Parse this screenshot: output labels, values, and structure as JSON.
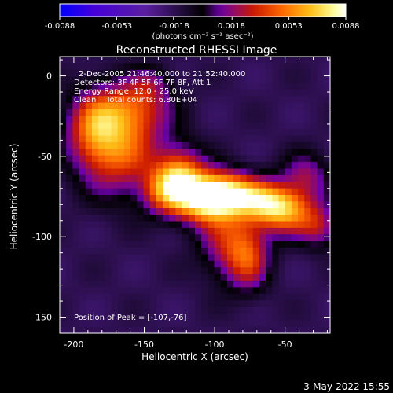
{
  "colorbar": {
    "tick_labels": [
      "-0.0088",
      "-0.0053",
      "-0.0018",
      "0.0018",
      "0.0053",
      "0.0088"
    ],
    "unit_label": "(photons cm⁻² s⁻¹ asec⁻²)"
  },
  "info": {
    "time_range": "2-Dec-2005 21:46:40.000 to 21:52:40.000",
    "detectors": "Detectors: 3F 4F 5F 6F 7F 8F, Att 1",
    "energy_range": "Energy Range: 12.0 - 25.0 keV",
    "method_counts": "Clean    Total counts: 6.80E+04",
    "peak_position": "Position of Peak = [-107,-76]"
  },
  "footer": {
    "date": "3-May-2022 15:55"
  },
  "chart_data": {
    "type": "heatmap",
    "title": "Reconstructed RHESSI Image",
    "xlabel": "Heliocentric X (arcsec)",
    "ylabel": "Heliocentric Y (arcsec)",
    "xlim": [
      -210,
      -18
    ],
    "ylim": [
      -160,
      12
    ],
    "x_ticks": [
      -200,
      -150,
      -100,
      -50
    ],
    "y_ticks": [
      0,
      -50,
      -100,
      -150
    ],
    "colorbar_range": [
      -0.0088,
      0.0088
    ],
    "colorbar_ticks": [
      -0.0088,
      -0.0053,
      -0.0018,
      0.0018,
      0.0053,
      0.0088
    ],
    "colormap": [
      "#0000ff",
      "#4400d8",
      "#5a1fa0",
      "#000000",
      "#6a00a8",
      "#cc1a00",
      "#ff6a00",
      "#ffc21a",
      "#ffffa0",
      "#ffffff"
    ],
    "peak": {
      "x": -107,
      "y": -76
    },
    "sources": [
      {
        "x": -107,
        "y": -76,
        "sx": 16,
        "sy": 11,
        "amp": 0.0088
      },
      {
        "x": -88,
        "y": -73,
        "sx": 16,
        "sy": 9,
        "amp": 0.0062
      },
      {
        "x": -125,
        "y": -60,
        "sx": 12,
        "sy": 12,
        "amp": 0.0055
      },
      {
        "x": -168,
        "y": -45,
        "sx": 20,
        "sy": 20,
        "amp": 0.006
      },
      {
        "x": -160,
        "y": -20,
        "sx": 20,
        "sy": 12,
        "amp": 0.004
      },
      {
        "x": -187,
        "y": -33,
        "sx": 13,
        "sy": 16,
        "amp": 0.0038
      },
      {
        "x": -48,
        "y": -85,
        "sx": 16,
        "sy": 10,
        "amp": 0.0058
      },
      {
        "x": -62,
        "y": -78,
        "sx": 14,
        "sy": 9,
        "amp": 0.0048
      },
      {
        "x": -88,
        "y": -105,
        "sx": 15,
        "sy": 16,
        "amp": 0.0046
      },
      {
        "x": -75,
        "y": -115,
        "sx": 10,
        "sy": 14,
        "amp": 0.0032
      },
      {
        "x": -35,
        "y": -62,
        "sx": 12,
        "sy": 10,
        "amp": 0.0033
      },
      {
        "x": -25,
        "y": -95,
        "sx": 10,
        "sy": 9,
        "amp": 0.003
      },
      {
        "x": -135,
        "y": -72,
        "sx": 12,
        "sy": 10,
        "amp": 0.0045
      },
      {
        "x": -145,
        "y": -5,
        "sx": 10,
        "sy": 8,
        "amp": 0.002
      }
    ],
    "background_level": -0.0018
  }
}
